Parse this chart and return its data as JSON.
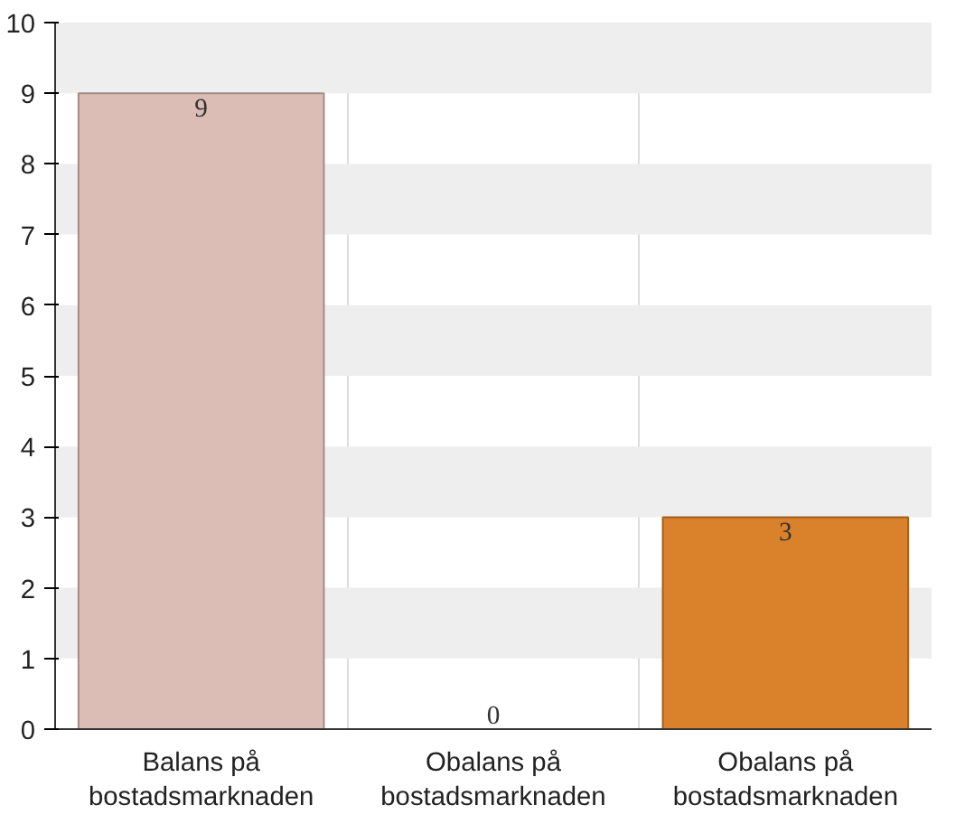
{
  "chart_data": {
    "type": "bar",
    "categories": [
      "Balans på bostadsmarknaden",
      "Obalans på bostadsmarknaden",
      "Obalans på bostadsmarknaden"
    ],
    "values": [
      9,
      0,
      3
    ],
    "colors": [
      "#dbbdb6",
      "#8fb08a",
      "#d9822b"
    ],
    "ylim": [
      0,
      10
    ],
    "yticks": [
      0,
      1,
      2,
      3,
      4,
      5,
      6,
      7,
      8,
      9,
      10
    ],
    "grid": true,
    "data_labels": true
  }
}
